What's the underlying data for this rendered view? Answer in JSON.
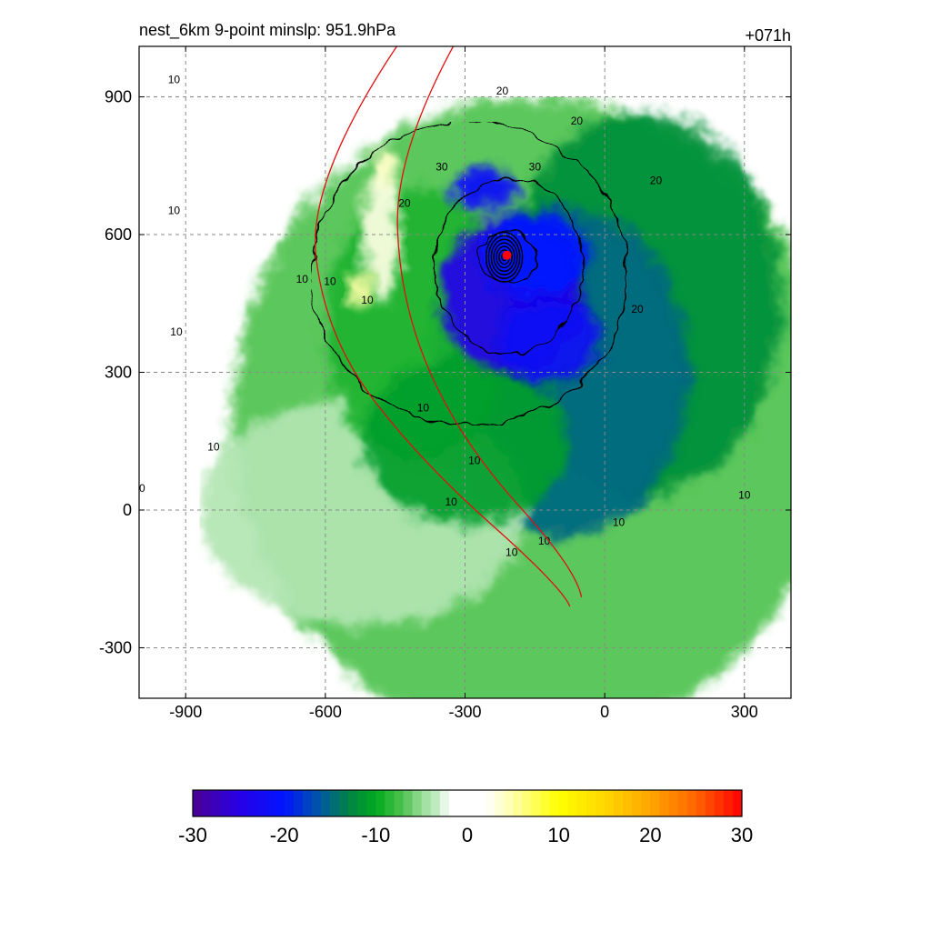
{
  "header": {
    "left_title": "nest_6km  9-point minslp: 951.9hPa",
    "right_title": "+071h"
  },
  "colors": {
    "negative_strong": "#0000ff",
    "negative_mid": "#00a020",
    "negative_weak": "#cfeccf",
    "neutral": "#ffffff",
    "positive_weak": "#ffff99",
    "positive_strong": "#ff0000",
    "storm_center_marker": "#ff0000",
    "reference_lines": "#e01010"
  },
  "chart_data": {
    "type": "heatmap",
    "title": "nest_6km  9-point minslp: 951.9hPa",
    "annotation_right": "+071h",
    "xlabel": "",
    "ylabel": "",
    "xlim": [
      -1000,
      400
    ],
    "ylim": [
      -410,
      1010
    ],
    "xticks": [
      -900,
      -600,
      -300,
      0,
      300
    ],
    "yticks": [
      -300,
      0,
      300,
      600,
      900
    ],
    "xtick_labels": [
      "-900",
      "-600",
      "-300",
      "0",
      "300"
    ],
    "ytick_labels": [
      "-300",
      "0",
      "300",
      "600",
      "900"
    ],
    "grid": true,
    "storm_center": {
      "x": -210,
      "y": 555
    },
    "field_features": [
      {
        "x": -200,
        "y": 470,
        "value": -24,
        "rx": 150,
        "ry": 170
      },
      {
        "x": -120,
        "y": 370,
        "value": -22,
        "rx": 110,
        "ry": 90
      },
      {
        "x": -260,
        "y": 700,
        "value": -21,
        "rx": 70,
        "ry": 50
      },
      {
        "x": -150,
        "y": 560,
        "value": -20,
        "rx": 120,
        "ry": 90
      },
      {
        "x": -100,
        "y": 300,
        "value": -15,
        "rx": 280,
        "ry": 360
      },
      {
        "x": 80,
        "y": 450,
        "value": -12,
        "rx": 300,
        "ry": 420
      },
      {
        "x": -300,
        "y": 150,
        "value": -11,
        "rx": 220,
        "ry": 180
      },
      {
        "x": -400,
        "y": 400,
        "value": -9,
        "rx": 200,
        "ry": 300
      },
      {
        "x": -150,
        "y": 200,
        "value": -7,
        "rx": 650,
        "ry": 700
      },
      {
        "x": -520,
        "y": 0,
        "value": -4,
        "rx": 350,
        "ry": 250
      },
      {
        "x": -480,
        "y": 600,
        "value": 3,
        "rx": 40,
        "ry": 150
      },
      {
        "x": -530,
        "y": 480,
        "value": 5,
        "rx": 25,
        "ry": 40
      },
      {
        "x": -470,
        "y": 750,
        "value": 4,
        "rx": 30,
        "ry": 40
      }
    ],
    "contours": {
      "levels": [
        10,
        20,
        30
      ],
      "labels": [
        "10",
        "20",
        "30"
      ],
      "center_rings": 7
    },
    "reference_lines": 2,
    "colorbar": {
      "min": -30,
      "max": 30,
      "ticks": [
        -30,
        -20,
        -10,
        0,
        10,
        20,
        30
      ],
      "tick_labels": [
        "-30",
        "-20",
        "-10",
        "0",
        "10",
        "20",
        "30"
      ],
      "n_bins": 60
    }
  }
}
